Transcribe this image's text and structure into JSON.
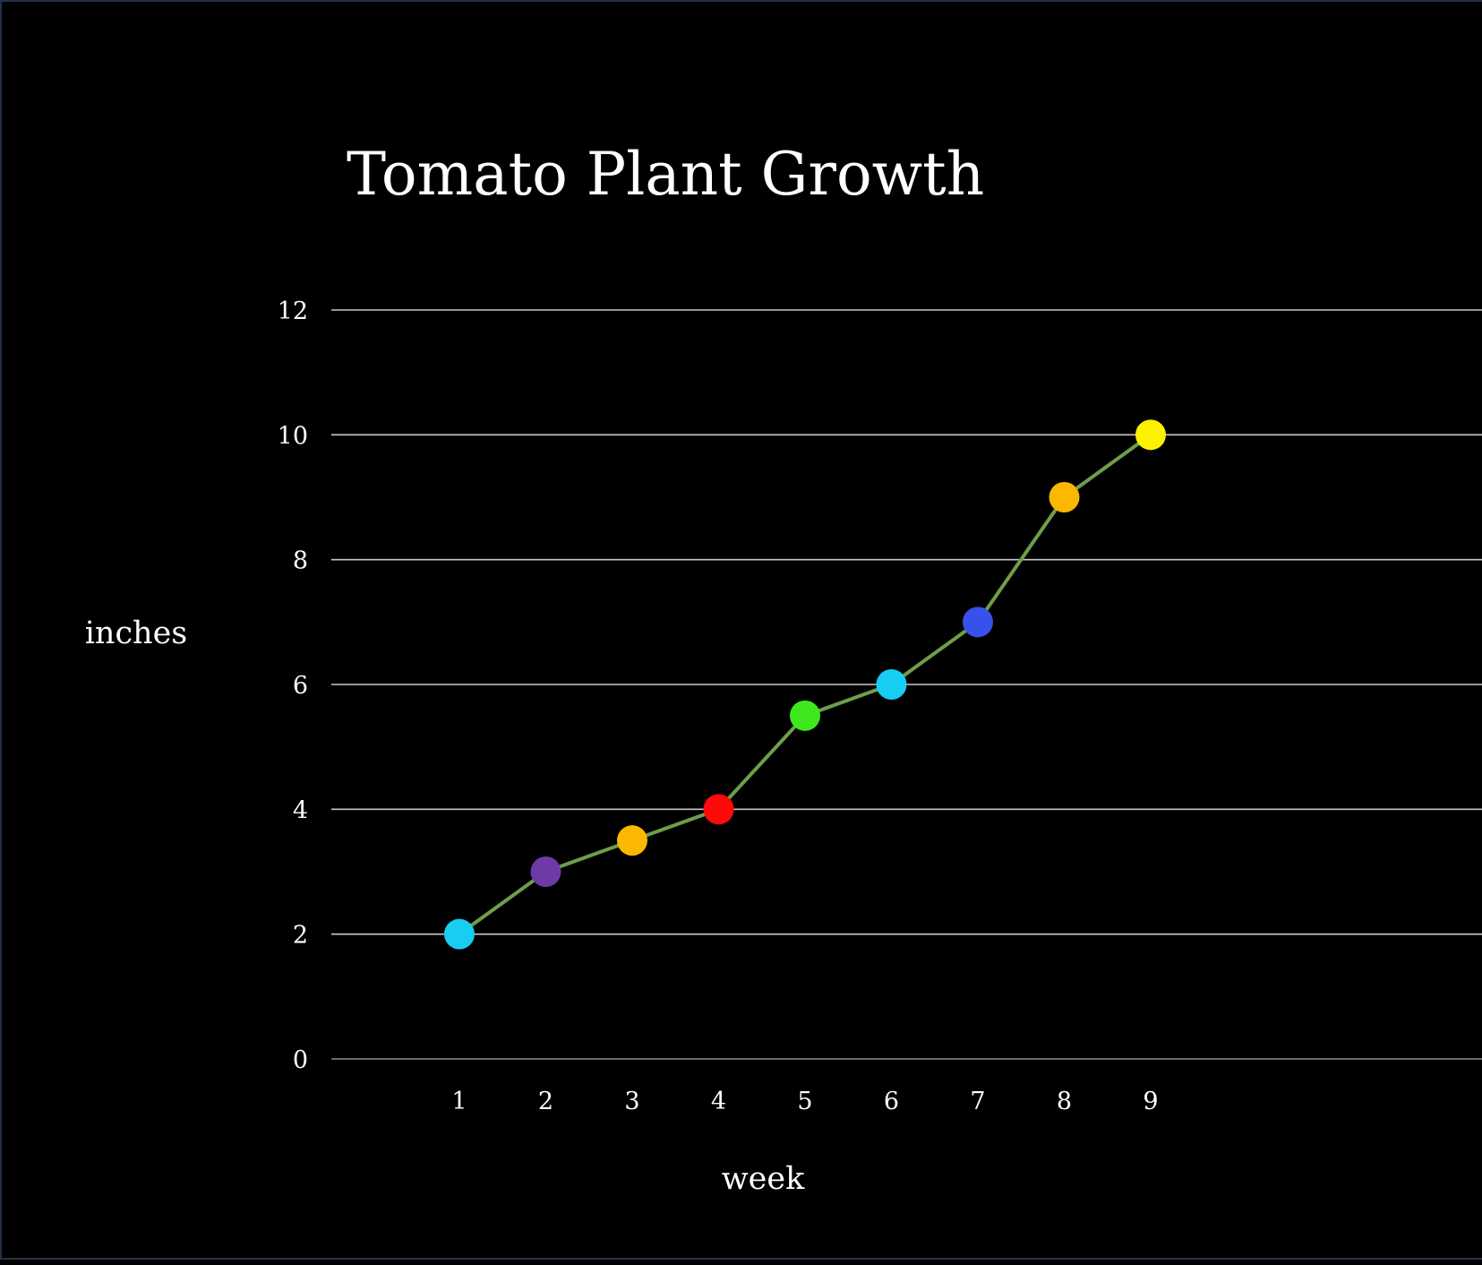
{
  "chart_data": {
    "type": "line",
    "title": "Tomato Plant Growth",
    "xlabel": "week",
    "ylabel": "inches",
    "categories": [
      "1",
      "2",
      "3",
      "4",
      "5",
      "6",
      "7",
      "8",
      "9"
    ],
    "x": [
      1,
      2,
      3,
      4,
      5,
      6,
      7,
      8,
      9
    ],
    "series": [
      {
        "values": [
          2,
          3,
          3.5,
          4,
          5.5,
          6,
          7,
          9,
          10
        ],
        "line_color": "#6e9e4a",
        "point_colors": [
          "#18cdf2",
          "#6e3aa6",
          "#fbb800",
          "#ff0a0a",
          "#3fe81e",
          "#18cdf2",
          "#3652ea",
          "#fbb800",
          "#fcf200"
        ]
      }
    ],
    "xlim": [
      -0.5,
      16
    ],
    "ylim": [
      0,
      12
    ],
    "yticks": [
      0,
      2,
      4,
      6,
      8,
      10,
      12
    ],
    "grid": true,
    "legend": false
  }
}
